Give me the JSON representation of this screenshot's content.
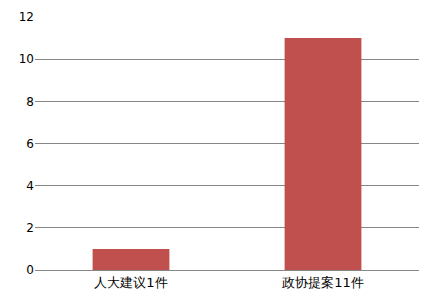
{
  "chart_data": {
    "type": "bar",
    "categories": [
      "人大建议1件",
      "政协提案11件"
    ],
    "values": [
      1,
      11
    ],
    "color": "#c0504d",
    "ylim": [
      0,
      12
    ],
    "yticks": [
      0,
      2,
      4,
      6,
      8,
      10,
      12
    ],
    "grid": true
  }
}
